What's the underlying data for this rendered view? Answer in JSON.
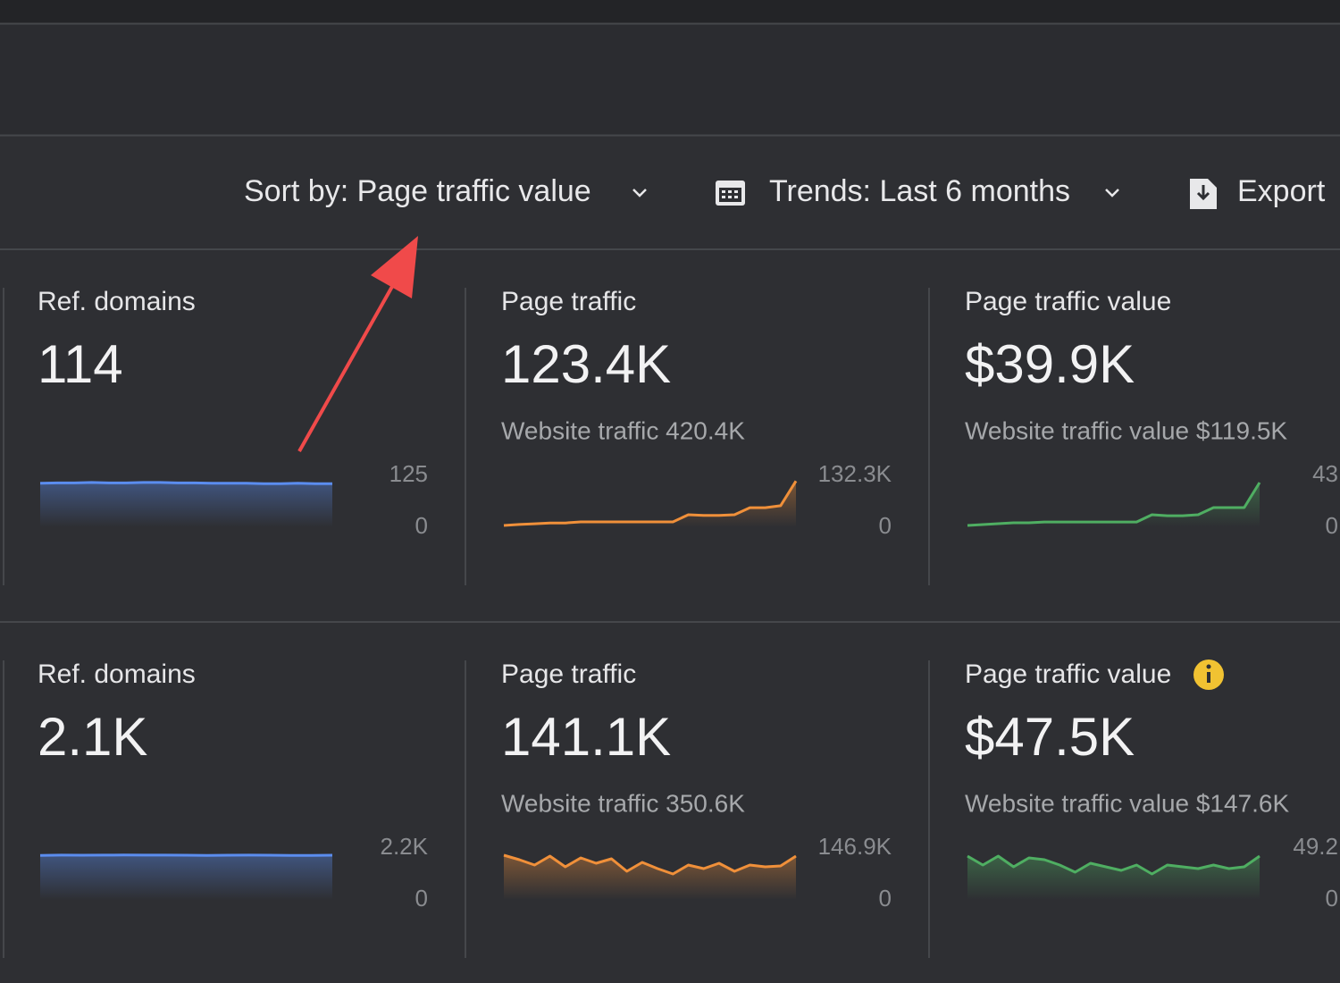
{
  "toolbar": {
    "sort": "Sort by: Page traffic value",
    "trends": "Trends: Last 6 months",
    "export": "Export"
  },
  "cards": [
    {
      "title": "Ref. domains",
      "value": "114",
      "chart": {
        "type": "line",
        "color": "#5b8def",
        "ylim": [
          0,
          125
        ],
        "yticks": [
          0,
          125
        ],
        "values": [
          106,
          107,
          107,
          108,
          107,
          107,
          108,
          108,
          107,
          107,
          106,
          106,
          106,
          105,
          105,
          106,
          105,
          105
        ]
      }
    },
    {
      "title": "Page traffic",
      "value": "123.4K",
      "subtitle": "Website traffic 420.4K",
      "chart": {
        "type": "line",
        "color": "#f0903a",
        "ylim": [
          0,
          132300
        ],
        "yticks": [
          0,
          {
            "value": 132300,
            "label": "132.3K"
          }
        ],
        "values": [
          4600,
          7000,
          9000,
          11000,
          11000,
          13700,
          13700,
          13700,
          13700,
          13700,
          13700,
          13700,
          32000,
          30000,
          30000,
          32000,
          50000,
          50000,
          55000,
          118000
        ]
      }
    },
    {
      "title": "Page traffic value",
      "value": "$39.9K",
      "subtitle": "Website traffic value $119.5K",
      "chart": {
        "type": "line",
        "color": "#4fae62",
        "ylim": [
          0,
          43000
        ],
        "yticks": [
          0,
          {
            "value": 43000,
            "label": "43"
          }
        ],
        "values": [
          1500,
          2200,
          3000,
          3700,
          3700,
          4400,
          4400,
          4400,
          4400,
          4400,
          4400,
          4400,
          10400,
          9600,
          9600,
          10400,
          16300,
          16300,
          16300,
          37100
        ]
      }
    },
    {
      "title": "Ref. domains",
      "value": "2.1K",
      "chart": {
        "type": "line",
        "color": "#5b8def",
        "ylim": [
          0,
          2200
        ],
        "yticks": [
          0,
          {
            "value": 2200,
            "label": "2.2K"
          }
        ],
        "values": [
          1890,
          1900,
          1895,
          1900,
          1905,
          1900,
          1900,
          1895,
          1890,
          1895,
          1900,
          1895,
          1890,
          1890,
          1895
        ]
      }
    },
    {
      "title": "Page traffic",
      "value": "141.1K",
      "subtitle": "Website traffic 350.6K",
      "chart": {
        "type": "line",
        "color": "#f0903a",
        "ylim": [
          0,
          146900
        ],
        "yticks": [
          0,
          {
            "value": 146900,
            "label": "146.9K"
          }
        ],
        "values": [
          126700,
          114000,
          98800,
          124100,
          93700,
          119000,
          103900,
          116500,
          81000,
          106400,
          88700,
          73500,
          98800,
          88700,
          103900,
          81000,
          98800,
          93700,
          96300,
          124100
        ]
      }
    },
    {
      "title": "Page traffic value",
      "value": "$47.5K",
      "subtitle": "Website traffic value $147.6K",
      "chart": {
        "type": "line",
        "color": "#4fae62",
        "ylim": [
          0,
          49200
        ],
        "yticks": [
          0,
          {
            "value": 49200,
            "label": "49.2"
          }
        ],
        "values": [
          41600,
          33100,
          41600,
          31400,
          39900,
          38200,
          33100,
          26300,
          34800,
          31400,
          28000,
          33100,
          24600,
          33100,
          31400,
          29700,
          33100,
          29700,
          31400,
          41600
        ]
      }
    }
  ]
}
